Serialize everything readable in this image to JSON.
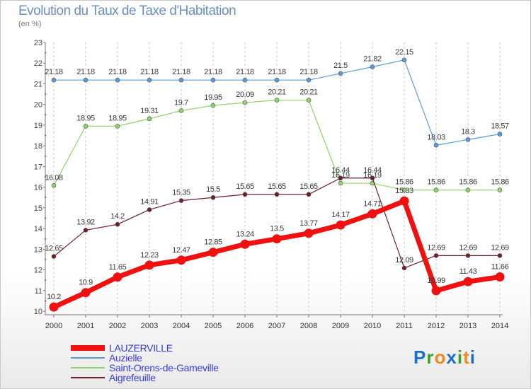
{
  "title": "Evolution du Taux de Taxe d'Habitation",
  "unit": "(en %)",
  "logo": {
    "letters": [
      "P",
      "r",
      "o",
      "x",
      "i",
      "t",
      "i"
    ],
    "colors": [
      "#1e6fc8",
      "#3f9d2f",
      "#f08a1c",
      "#1e6fc8",
      "#3f9d2f",
      "#f08a1c",
      "#1e6fc8"
    ]
  },
  "chart_data": {
    "type": "line",
    "title": "Evolution du Taux de Taxe d'Habitation",
    "ylabel": "(en %)",
    "xlabel": "",
    "x": [
      "2000",
      "2001",
      "2002",
      "2003",
      "2004",
      "2005",
      "2006",
      "2007",
      "2008",
      "2009",
      "2010",
      "2011",
      "2012",
      "2013",
      "2014"
    ],
    "ylim": [
      10,
      23
    ],
    "yticks": [
      "10",
      "11",
      "12",
      "13",
      "14",
      "15",
      "16",
      "17",
      "18",
      "19",
      "20",
      "21",
      "22",
      "23"
    ],
    "grid": "vertical dashed",
    "legend": "bottom-left",
    "series": [
      {
        "name": "Auzielle",
        "color": "#5b9bd5",
        "width": 1.2,
        "values": [
          21.18,
          21.18,
          21.18,
          21.18,
          21.18,
          21.18,
          21.18,
          21.18,
          21.18,
          21.5,
          21.82,
          22.15,
          18.03,
          18.3,
          18.57
        ],
        "labels": [
          "21.18",
          "21.18",
          "21.18",
          "21.18",
          "21.18",
          "21.18",
          "21.18",
          "21.18",
          "21.18",
          "21.5",
          "21.82",
          "22.15",
          "18.03",
          "18.3",
          "18.57"
        ]
      },
      {
        "name": "Saint-Orens-de-Gameville",
        "color": "#8fd36a",
        "width": 1.2,
        "values": [
          16.08,
          18.95,
          18.95,
          19.31,
          19.7,
          19.95,
          20.09,
          20.21,
          20.21,
          16.19,
          16.19,
          15.86,
          15.86,
          15.86,
          15.86
        ],
        "labels": [
          "16.08",
          "18.95",
          "18.95",
          "19.31",
          "19.7",
          "19.95",
          "20.09",
          "20.21",
          "20.21",
          "16.19",
          "16.19",
          "15.86",
          "15.86",
          "15.86",
          "15.86"
        ]
      },
      {
        "name": "Aigrefeuille",
        "color": "#6e1f28",
        "width": 1.2,
        "values": [
          12.65,
          13.92,
          14.2,
          14.91,
          15.35,
          15.5,
          15.65,
          15.65,
          15.65,
          16.44,
          16.44,
          12.09,
          12.69,
          12.69,
          12.69
        ],
        "labels": [
          "12.65",
          "13.92",
          "14.2",
          "14.91",
          "15.35",
          "15.5",
          "15.65",
          "15.65",
          "15.65",
          "16.44",
          "16.44",
          "12.09",
          "12.69",
          "12.69",
          "12.69"
        ]
      },
      {
        "name": "LAUZERVILLE",
        "color": "#f01010",
        "width": 7,
        "values": [
          10.2,
          10.9,
          11.65,
          12.23,
          12.47,
          12.85,
          13.24,
          13.5,
          13.77,
          14.17,
          14.71,
          15.33,
          10.99,
          11.43,
          11.66
        ],
        "labels": [
          "10.2",
          "10.9",
          "11.65",
          "12.23",
          "12.47",
          "12.85",
          "13.24",
          "13.5",
          "13.77",
          "14.17",
          "14.71",
          "15.33",
          "10.99",
          "11.43",
          "11.66"
        ]
      }
    ],
    "legend_order": [
      "LAUZERVILLE",
      "Auzielle",
      "Saint-Orens-de-Gameville",
      "Aigrefeuille"
    ]
  }
}
